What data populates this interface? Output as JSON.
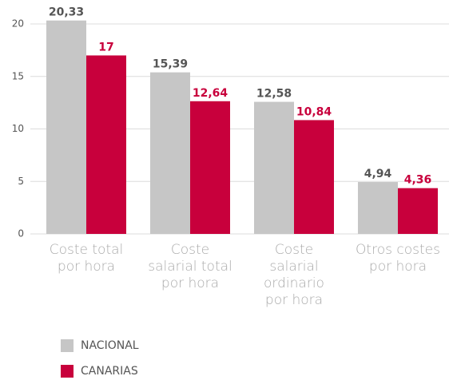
{
  "chart_data": {
    "type": "bar",
    "categories": [
      [
        "Coste total",
        "por hora"
      ],
      [
        "Coste",
        "salarial total",
        "por hora"
      ],
      [
        "Coste",
        "salarial",
        "ordinario",
        "por hora"
      ],
      [
        "Otros costes",
        "por hora"
      ]
    ],
    "series": [
      {
        "name": "NACIONAL",
        "color": "#c6c6c6",
        "label_color": "#555555",
        "values": [
          20.33,
          15.39,
          12.58,
          4.94
        ],
        "value_labels": [
          "20,33",
          "15,39",
          "12,58",
          "4,94"
        ]
      },
      {
        "name": "CANARIAS",
        "color": "#c8003c",
        "label_color": "#c8003c",
        "values": [
          17,
          12.64,
          10.84,
          4.36
        ],
        "value_labels": [
          "17",
          "12,64",
          "10,84",
          "4,36"
        ]
      }
    ],
    "ylim": [
      0,
      20
    ],
    "yticks": [
      0,
      5,
      10,
      15,
      20
    ],
    "grid": true
  }
}
